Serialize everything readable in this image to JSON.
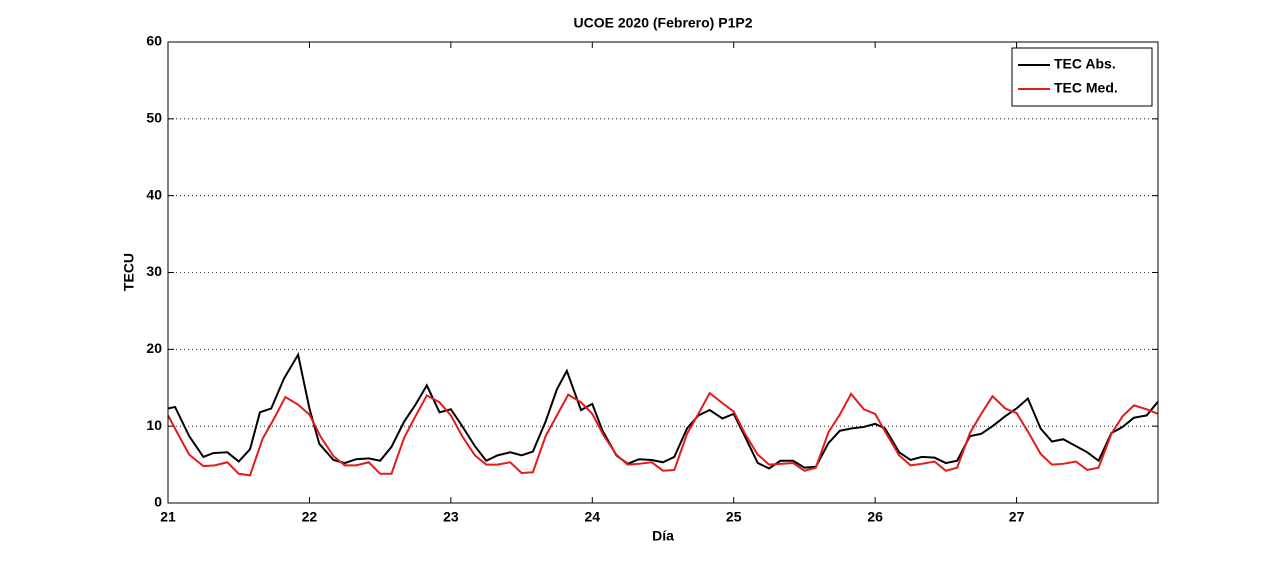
{
  "chart_data": {
    "type": "line",
    "title": "UCOE 2020 (Febrero) P1P2",
    "xlabel": "Día",
    "ylabel": "TECU",
    "xlim": [
      21,
      28
    ],
    "xticks": [
      21,
      22,
      23,
      24,
      25,
      26,
      27
    ],
    "ylim": [
      0,
      60
    ],
    "yticks": [
      0,
      10,
      20,
      30,
      40,
      50,
      60
    ],
    "grid": true,
    "legend": "upper right",
    "series": [
      {
        "name": "TEC Abs.",
        "color": "#000000",
        "x": [
          21.0,
          21.05,
          21.15,
          21.25,
          21.32,
          21.42,
          21.5,
          21.58,
          21.65,
          21.73,
          21.82,
          21.92,
          22.0,
          22.07,
          22.17,
          22.25,
          22.33,
          22.42,
          22.5,
          22.58,
          22.67,
          22.75,
          22.83,
          22.92,
          23.0,
          23.07,
          23.17,
          23.25,
          23.33,
          23.42,
          23.5,
          23.58,
          23.67,
          23.75,
          23.82,
          23.92,
          24.0,
          24.07,
          24.17,
          24.25,
          24.33,
          24.42,
          24.5,
          24.58,
          24.67,
          24.75,
          24.83,
          24.92,
          25.0,
          25.07,
          25.17,
          25.25,
          25.33,
          25.42,
          25.5,
          25.58,
          25.67,
          25.75,
          25.83,
          25.92,
          26.0,
          26.07,
          26.17,
          26.25,
          26.33,
          26.42,
          26.5,
          26.58,
          26.67,
          26.75,
          26.83,
          26.92,
          27.0,
          27.08,
          27.17,
          27.25,
          27.33,
          27.42,
          27.5,
          27.58,
          27.67,
          27.75,
          27.83,
          27.92,
          28.0
        ],
        "values": [
          12.3,
          12.5,
          8.7,
          6.0,
          6.5,
          6.6,
          5.4,
          7.0,
          11.8,
          12.3,
          16.2,
          19.3,
          12.3,
          7.7,
          5.6,
          5.2,
          5.7,
          5.8,
          5.5,
          7.3,
          10.6,
          12.8,
          15.3,
          11.8,
          12.2,
          10.3,
          7.4,
          5.5,
          6.2,
          6.6,
          6.2,
          6.7,
          10.6,
          14.8,
          17.2,
          12.1,
          12.9,
          9.5,
          6.2,
          5.1,
          5.7,
          5.6,
          5.3,
          6.0,
          9.7,
          11.4,
          12.1,
          11.0,
          11.6,
          9.0,
          5.2,
          4.5,
          5.5,
          5.5,
          4.6,
          4.7,
          7.8,
          9.4,
          9.7,
          9.9,
          10.3,
          9.7,
          6.6,
          5.6,
          6.0,
          5.9,
          5.2,
          5.5,
          8.7,
          9.0,
          10.0,
          11.3,
          12.3,
          13.6,
          9.7,
          8.0,
          8.3,
          7.4,
          6.6,
          5.5,
          9.1,
          9.9,
          11.1,
          11.4,
          13.2
        ]
      },
      {
        "name": "TEC Med.",
        "color": "#e41a1c",
        "x": [
          21.0,
          21.07,
          21.15,
          21.25,
          21.33,
          21.42,
          21.5,
          21.58,
          21.67,
          21.75,
          21.83,
          21.92,
          22.0,
          22.08,
          22.17,
          22.25,
          22.33,
          22.42,
          22.5,
          22.58,
          22.67,
          22.75,
          22.83,
          22.92,
          23.0,
          23.08,
          23.17,
          23.25,
          23.33,
          23.42,
          23.5,
          23.58,
          23.67,
          23.75,
          23.83,
          23.92,
          24.0,
          24.08,
          24.17,
          24.25,
          24.33,
          24.42,
          24.5,
          24.58,
          24.67,
          24.75,
          24.83,
          24.92,
          25.0,
          25.08,
          25.17,
          25.25,
          25.33,
          25.42,
          25.5,
          25.58,
          25.67,
          25.75,
          25.83,
          25.92,
          26.0,
          26.08,
          26.17,
          26.25,
          26.33,
          26.42,
          26.5,
          26.58,
          26.67,
          26.75,
          26.83,
          26.92,
          27.0,
          27.08,
          27.17,
          27.25,
          27.33,
          27.42,
          27.5,
          27.58,
          27.67,
          27.75,
          27.83,
          27.92,
          28.0
        ],
        "values": [
          11.4,
          9.0,
          6.3,
          4.8,
          4.9,
          5.3,
          3.8,
          3.6,
          8.4,
          11.0,
          13.8,
          12.8,
          11.5,
          8.6,
          6.1,
          4.9,
          4.9,
          5.3,
          3.8,
          3.8,
          8.5,
          11.3,
          14.0,
          13.1,
          11.4,
          8.7,
          6.2,
          5.0,
          5.0,
          5.3,
          3.9,
          4.0,
          8.7,
          11.4,
          14.1,
          13.1,
          11.6,
          8.8,
          6.3,
          5.0,
          5.1,
          5.3,
          4.2,
          4.3,
          9.0,
          11.6,
          14.3,
          13.0,
          11.9,
          9.0,
          6.3,
          5.0,
          5.1,
          5.2,
          4.2,
          4.6,
          9.2,
          11.5,
          14.2,
          12.2,
          11.6,
          9.0,
          6.2,
          4.9,
          5.1,
          5.4,
          4.2,
          4.6,
          9.1,
          11.6,
          13.9,
          12.3,
          11.7,
          9.3,
          6.4,
          5.0,
          5.1,
          5.4,
          4.3,
          4.6,
          9.0,
          11.3,
          12.7,
          12.2,
          11.6
        ]
      }
    ]
  }
}
